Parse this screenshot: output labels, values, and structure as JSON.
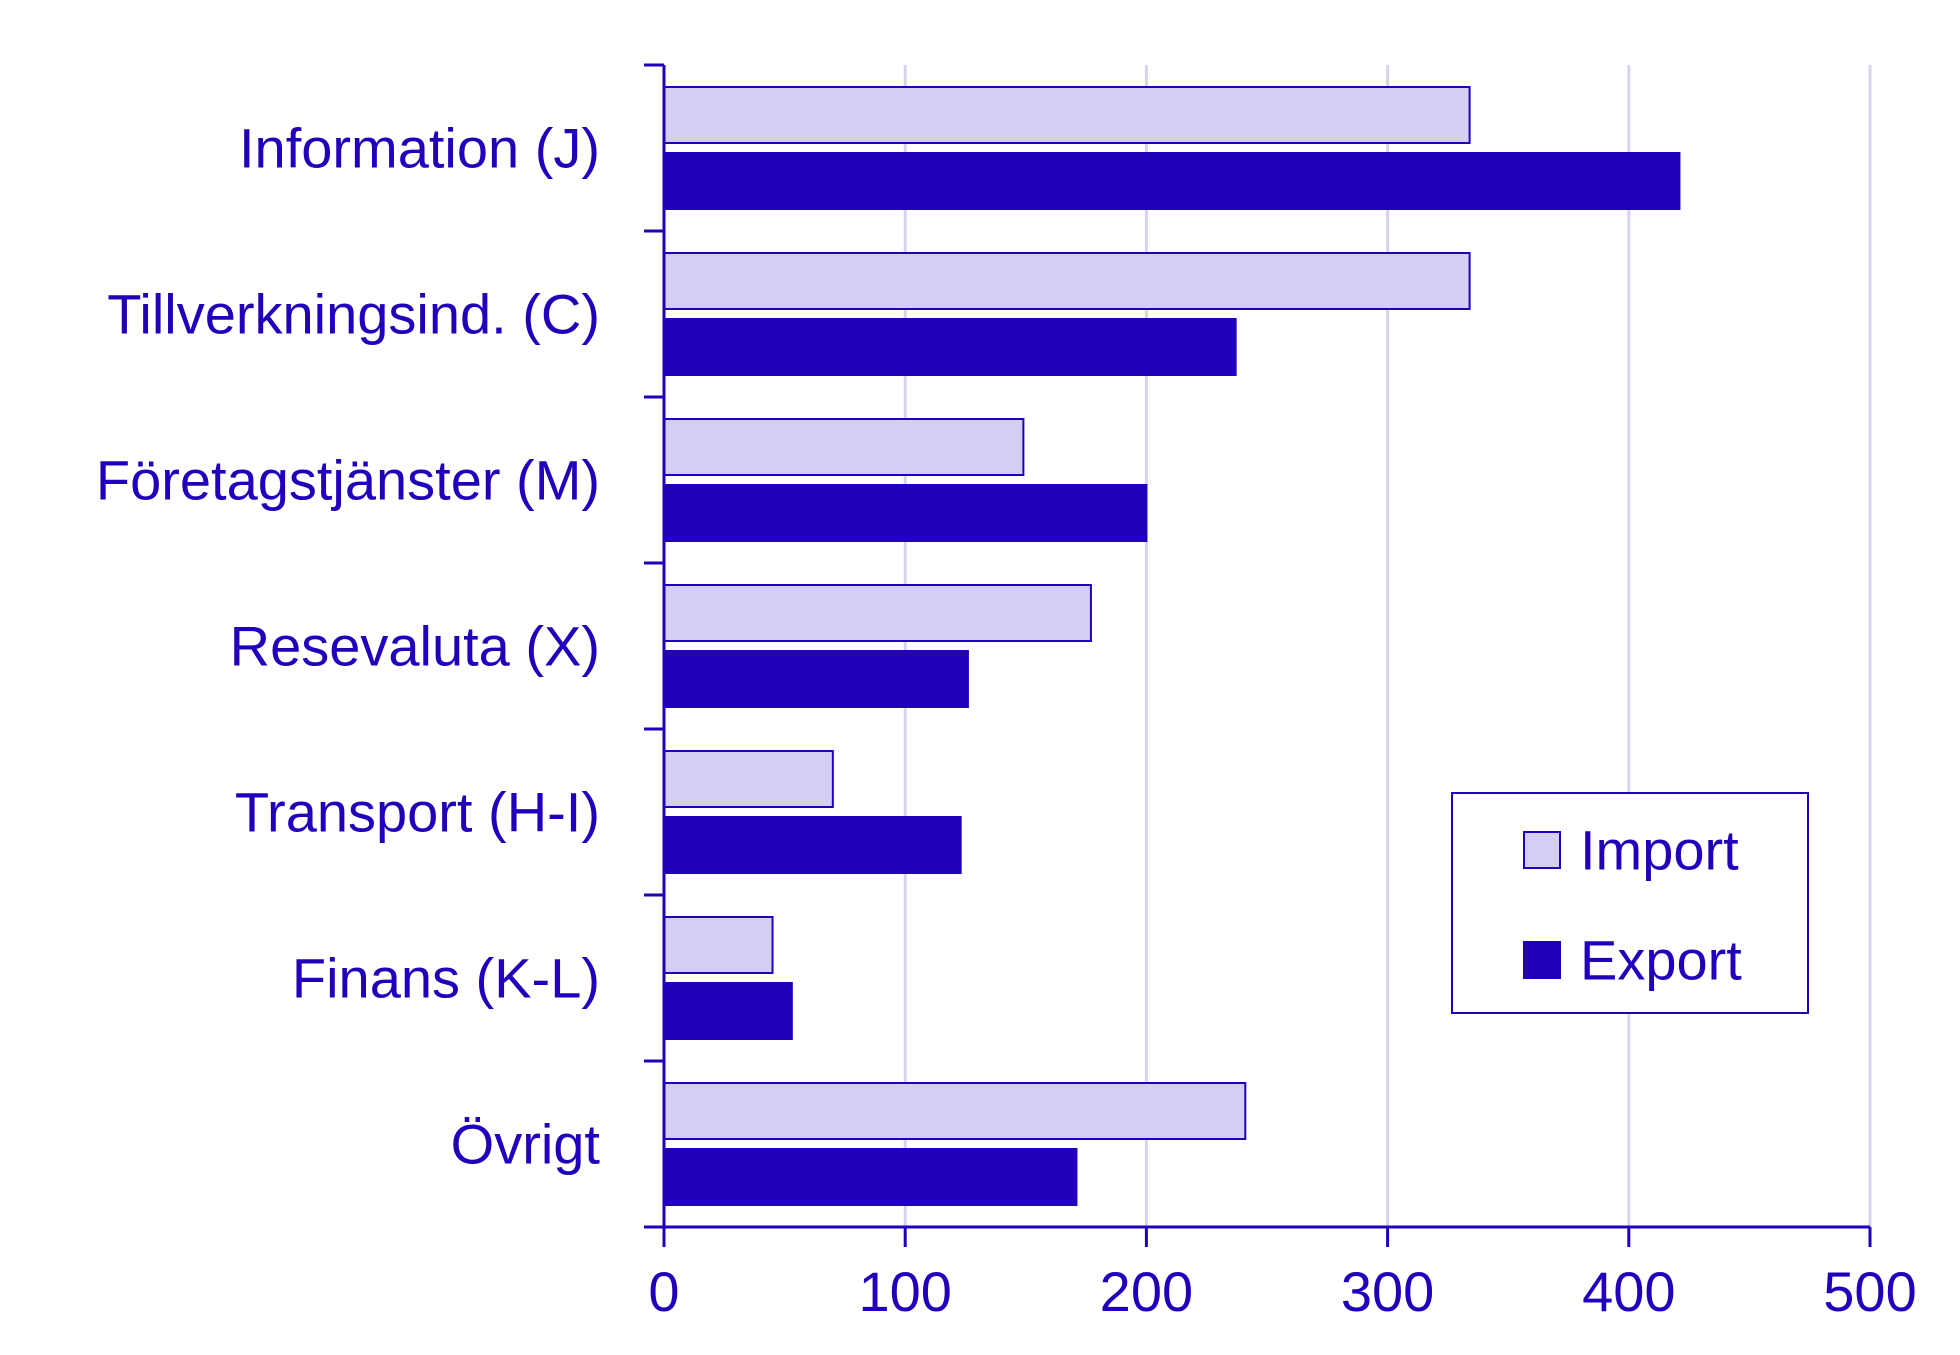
{
  "chart_data": {
    "type": "bar",
    "orientation": "horizontal",
    "categories": [
      "Information (J)",
      "Tillverkningsind. (C)",
      "Företagstjänster (M)",
      "Resevaluta (X)",
      "Transport (H-I)",
      "Finans (K-L)",
      "Övrigt"
    ],
    "series": [
      {
        "name": "Import",
        "values": [
          334,
          334,
          149,
          177,
          70,
          45,
          241
        ]
      },
      {
        "name": "Export",
        "values": [
          421,
          237,
          200,
          126,
          123,
          53,
          171
        ]
      }
    ],
    "xlim": [
      0,
      500
    ],
    "xticks": [
      "0",
      "100",
      "200",
      "300",
      "400",
      "500"
    ],
    "grid": "vertical",
    "legend_position": "right",
    "colors": {
      "Import": "#d3cff2",
      "Export": "#2200bb",
      "accent": "#2200bb",
      "grid": "#d6d3ee"
    }
  }
}
